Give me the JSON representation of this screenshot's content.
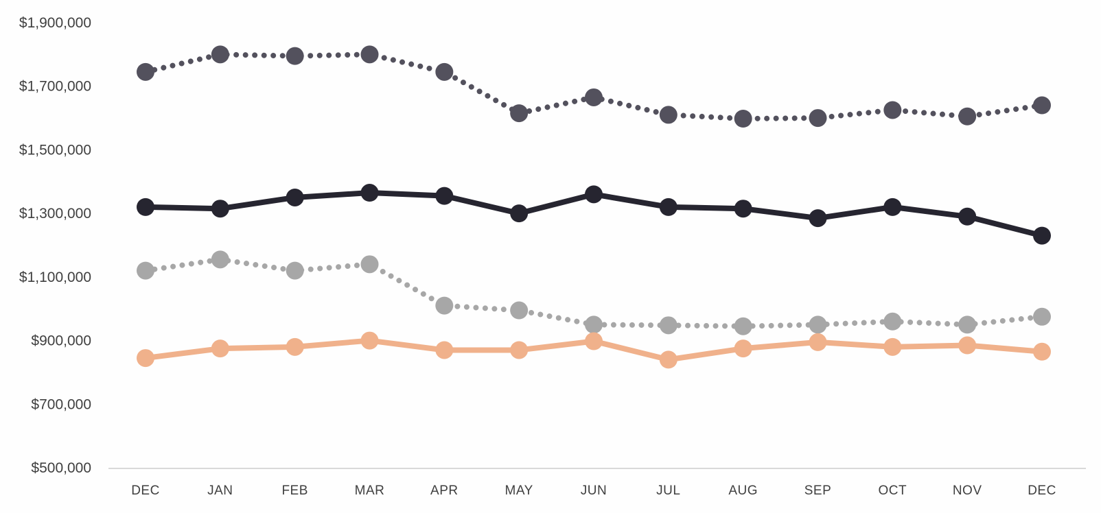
{
  "chart_data": {
    "type": "line",
    "title": "",
    "xlabel": "",
    "ylabel": "",
    "categories": [
      "DEC",
      "JAN",
      "FEB",
      "MAR",
      "APR",
      "MAY",
      "JUN",
      "JUL",
      "AUG",
      "SEP",
      "OCT",
      "NOV",
      "DEC"
    ],
    "series": [
      {
        "name": "dark-dotted-line",
        "style": "dotted",
        "color": "#53515d",
        "values": [
          1745000,
          1800000,
          1795000,
          1800000,
          1745000,
          1615000,
          1665000,
          1610000,
          1598000,
          1600000,
          1625000,
          1605000,
          1640000
        ]
      },
      {
        "name": "black-solid-line",
        "style": "solid",
        "color": "#262530",
        "values": [
          1320000,
          1315000,
          1350000,
          1365000,
          1355000,
          1300000,
          1360000,
          1320000,
          1315000,
          1285000,
          1320000,
          1290000,
          1230000
        ]
      },
      {
        "name": "gray-dotted-line",
        "style": "dotted",
        "color": "#a7a7a7",
        "values": [
          1120000,
          1155000,
          1120000,
          1140000,
          1010000,
          995000,
          950000,
          948000,
          945000,
          950000,
          960000,
          950000,
          975000
        ]
      },
      {
        "name": "peach-solid-line",
        "style": "solid",
        "color": "#f0b18b",
        "values": [
          845000,
          875000,
          880000,
          900000,
          870000,
          870000,
          898000,
          840000,
          875000,
          895000,
          880000,
          885000,
          865000
        ]
      }
    ],
    "ylim": [
      500000,
      1900000
    ],
    "ytick_step": 200000,
    "ytick_labels": [
      "$500,000",
      "$700,000",
      "$900,000",
      "$1,100,000",
      "$1,300,000",
      "$1,500,000",
      "$1,700,000",
      "$1,900,000"
    ],
    "grid": false,
    "legend": "none",
    "axis_line_color": "#d9d9d9",
    "tick_label_color": "#3f3f3f"
  }
}
